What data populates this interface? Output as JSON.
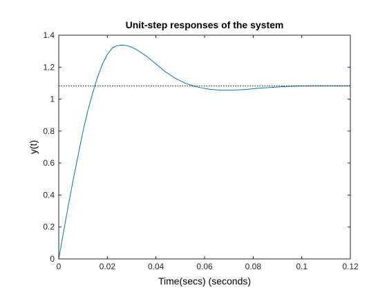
{
  "chart_data": {
    "type": "line",
    "title": "Unit-step responses of the system",
    "xlabel": "Time(secs) (seconds)",
    "ylabel": "y(t)",
    "xlim": [
      0,
      0.12
    ],
    "ylim": [
      0,
      1.4
    ],
    "grid": false,
    "x_ticks": [
      0,
      0.02,
      0.04,
      0.06,
      0.08,
      0.1,
      0.12
    ],
    "x_tick_labels": [
      "0",
      "0.02",
      "0.04",
      "0.06",
      "0.08",
      "0.1",
      "0.12"
    ],
    "y_ticks": [
      0,
      0.2,
      0.4,
      0.6,
      0.8,
      1.0,
      1.2,
      1.4
    ],
    "y_tick_labels": [
      "0",
      "0.2",
      "0.4",
      "0.6",
      "0.8",
      "1",
      "1.2",
      "1.4"
    ],
    "series": [
      {
        "color": "#0072BD",
        "style": "solid",
        "x": [
          0,
          0.002,
          0.004,
          0.006,
          0.008,
          0.01,
          0.012,
          0.014,
          0.016,
          0.018,
          0.02,
          0.022,
          0.024,
          0.026,
          0.028,
          0.03,
          0.032,
          0.034,
          0.036,
          0.038,
          0.04,
          0.042,
          0.044,
          0.046,
          0.048,
          0.05,
          0.052,
          0.054,
          0.056,
          0.058,
          0.06,
          0.062,
          0.064,
          0.066,
          0.068,
          0.07,
          0.072,
          0.074,
          0.076,
          0.078,
          0.08,
          0.084,
          0.088,
          0.092,
          0.096,
          0.1,
          0.104,
          0.108,
          0.112,
          0.116,
          0.12
        ],
        "y": [
          0,
          0.17,
          0.34,
          0.5,
          0.65,
          0.8,
          0.93,
          1.04,
          1.14,
          1.22,
          1.28,
          1.32,
          1.335,
          1.338,
          1.335,
          1.325,
          1.31,
          1.29,
          1.27,
          1.245,
          1.22,
          1.195,
          1.17,
          1.15,
          1.13,
          1.115,
          1.1,
          1.09,
          1.08,
          1.073,
          1.067,
          1.062,
          1.059,
          1.057,
          1.056,
          1.056,
          1.057,
          1.058,
          1.06,
          1.062,
          1.065,
          1.07,
          1.074,
          1.078,
          1.081,
          1.082,
          1.083,
          1.083,
          1.083,
          1.083,
          1.083
        ]
      },
      {
        "color": "#000000",
        "style": "dotted",
        "x": [
          0,
          0.12
        ],
        "y": [
          1.083,
          1.083
        ]
      }
    ]
  }
}
